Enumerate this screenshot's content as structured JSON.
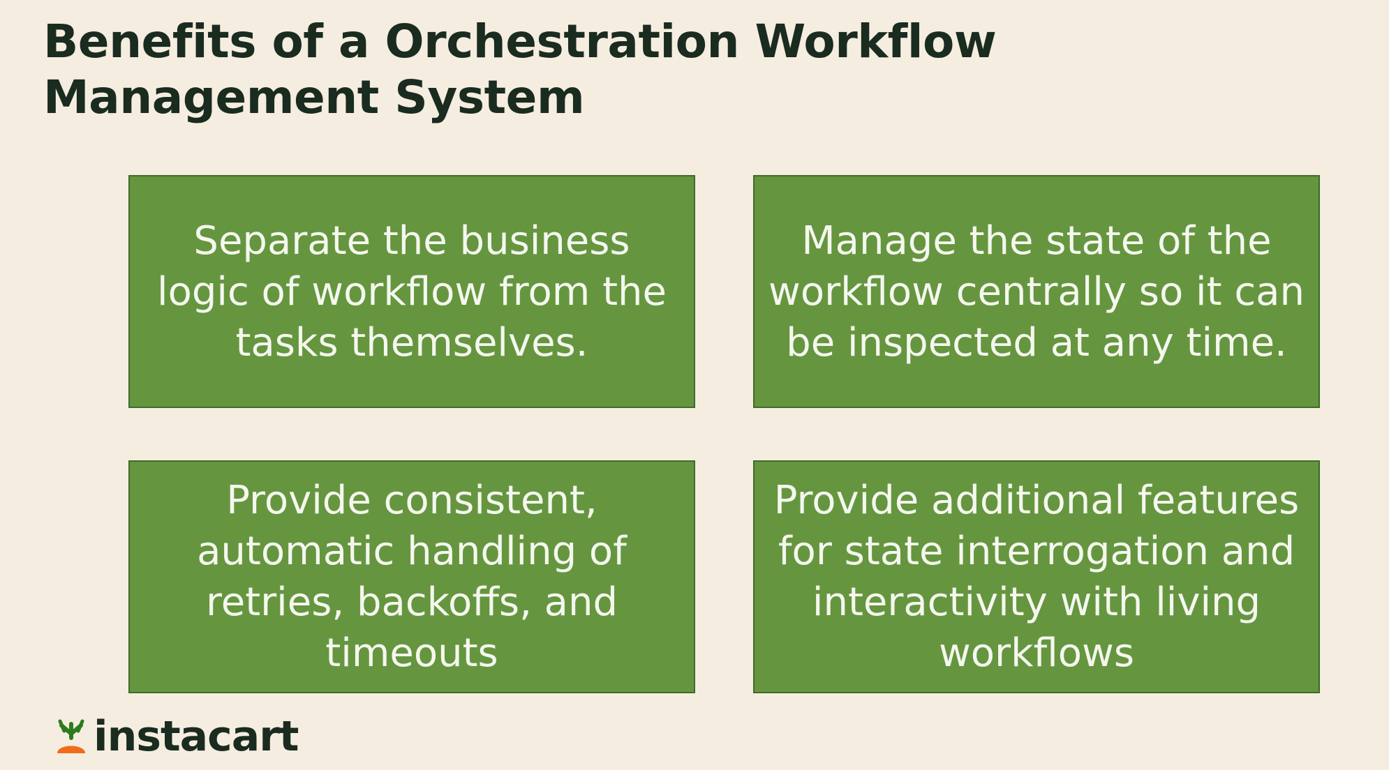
{
  "slide": {
    "title_line1": "Benefits of a Orchestration Workflow",
    "title_line2": "Management System",
    "cards": [
      {
        "text": "Separate the business logic of workflow from the tasks themselves."
      },
      {
        "text": "Manage the state of the workflow centrally so it can be inspected at any time."
      },
      {
        "text": "Provide consistent, automatic handling of retries, backoffs, and timeouts"
      },
      {
        "text": "Provide additional features for state interrogation and interactivity with living workflows"
      }
    ],
    "logo": {
      "text": "instacart",
      "icon": "carrot-icon"
    }
  },
  "colors": {
    "background": "#f5eddf",
    "card_fill": "#65963f",
    "card_border": "#3f6a2a",
    "title_text": "#1a2b20",
    "card_text": "#f5f7ef",
    "logo_leaf": "#2d7a1f",
    "logo_carrot": "#f26b1d"
  }
}
